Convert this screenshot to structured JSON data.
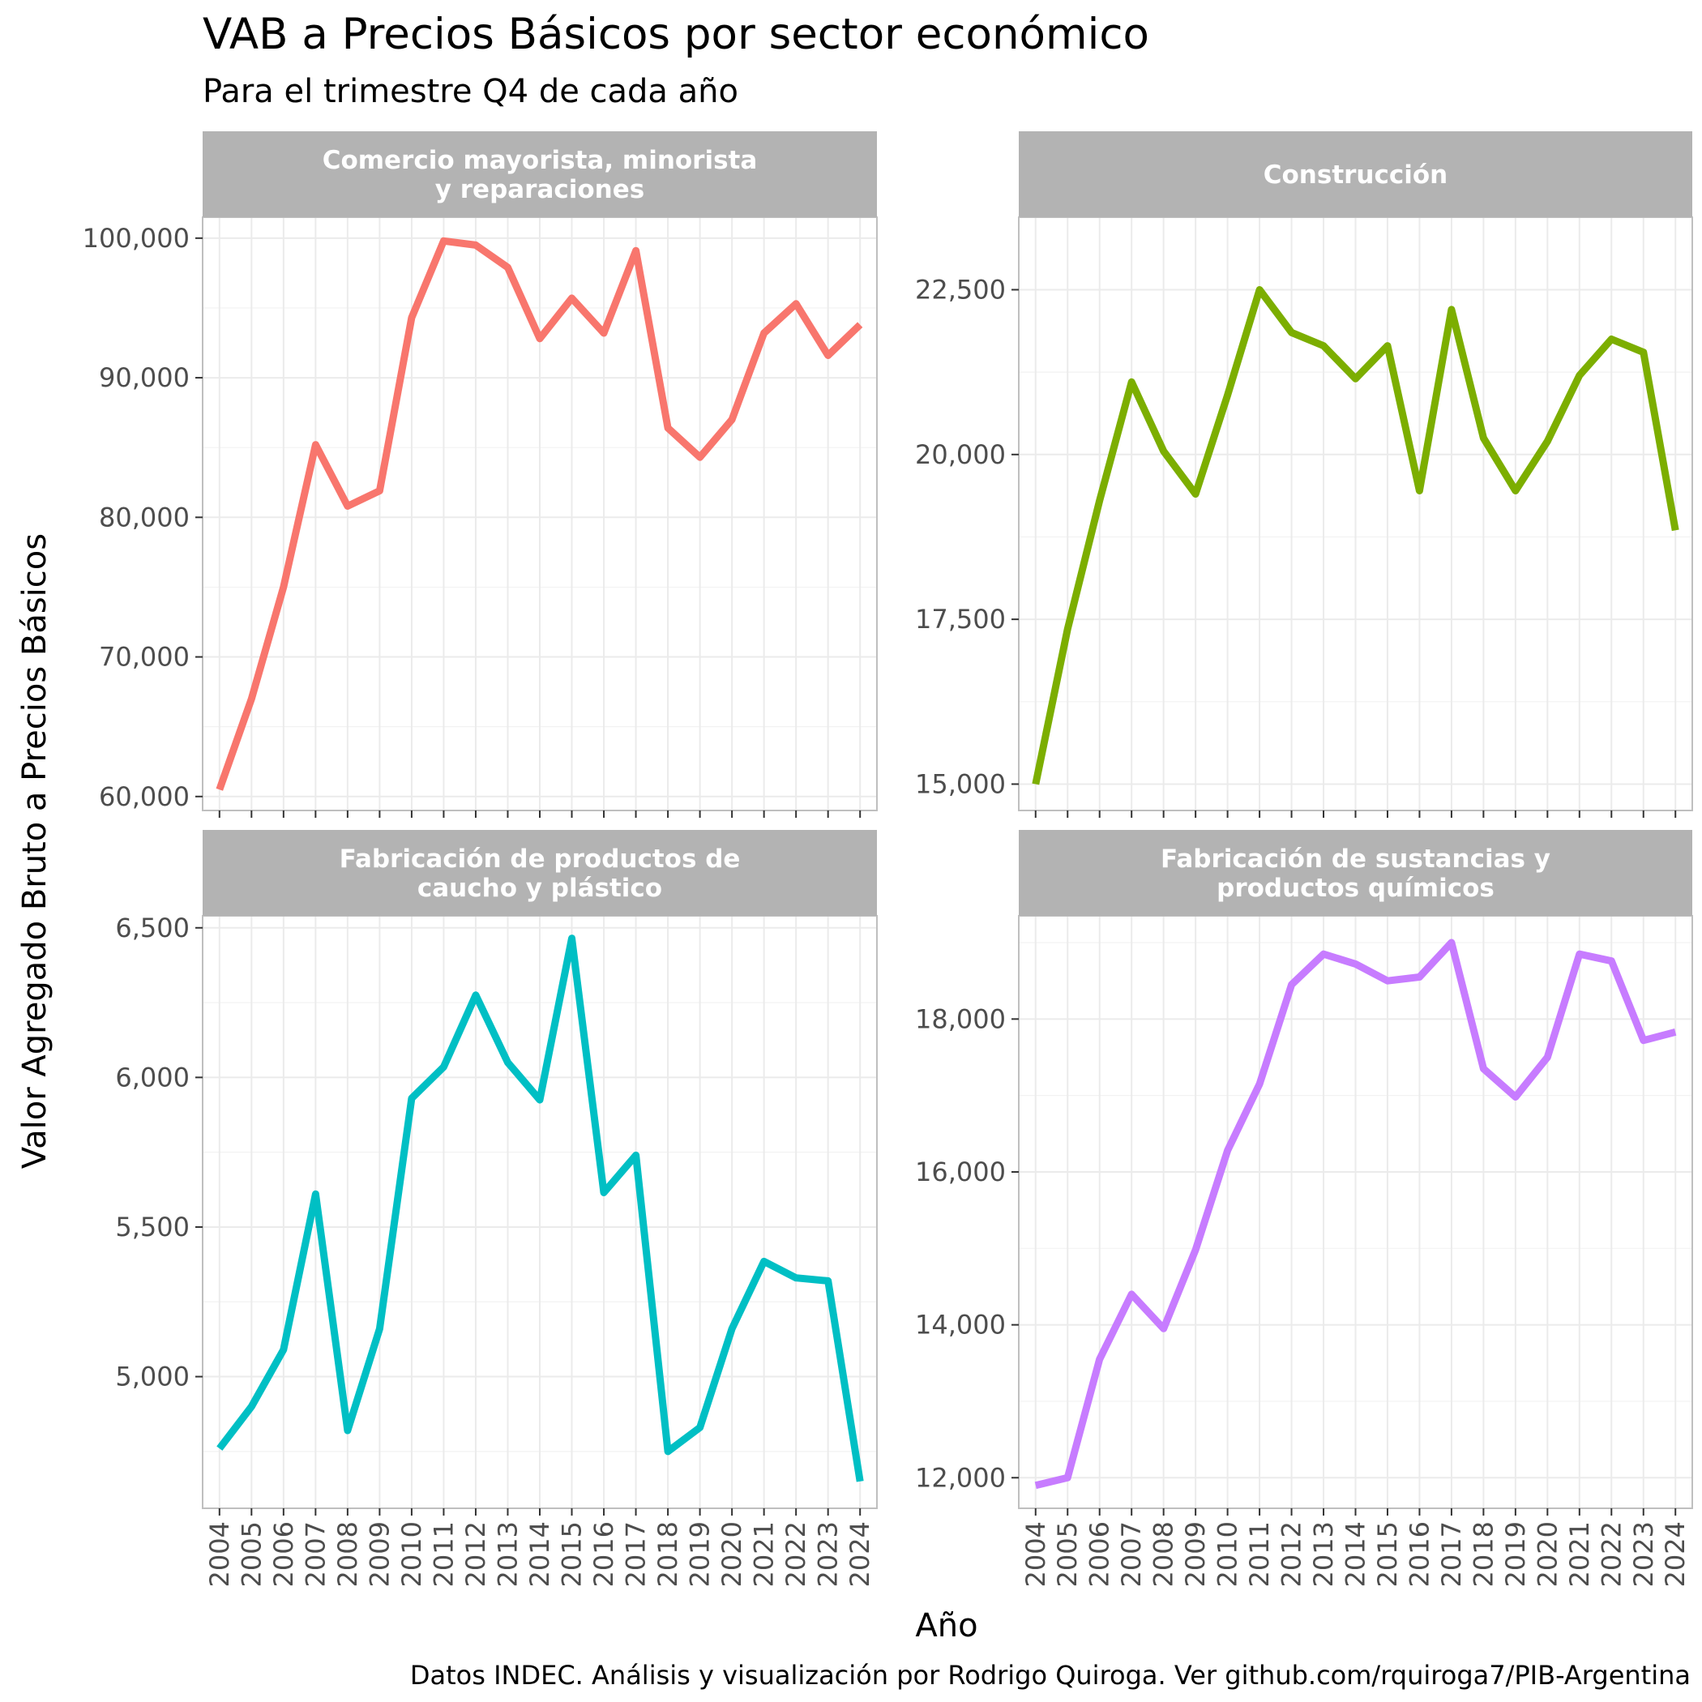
{
  "title": "VAB a Precios Básicos por sector económico",
  "subtitle": "Para el trimestre Q4 de cada año",
  "ylabel": "Valor Agregado Bruto a Precios Básicos",
  "xlabel": "Año",
  "caption": "Datos INDEC. Análisis y visualización por Rodrigo Quiroga. Ver github.com/rquiroga7/PIB-Argentina",
  "colors": {
    "strip_bg": "#b3b3b3",
    "grid": "#ebebeb",
    "panel_border": "#bfbfbf",
    "tick_text": "#4d4d4d"
  },
  "chart_data": [
    {
      "type": "line",
      "title_lines": [
        "Comercio mayorista, minorista",
        "y reparaciones"
      ],
      "color": "#F8766D",
      "ylim": [
        59000,
        101500
      ],
      "yticks": [
        60000,
        70000,
        80000,
        90000,
        100000
      ],
      "ytick_labels": [
        "60,000",
        "70,000",
        "80,000",
        "90,000",
        "100,000"
      ],
      "x": [
        2004,
        2005,
        2006,
        2007,
        2008,
        2009,
        2010,
        2011,
        2012,
        2013,
        2014,
        2015,
        2016,
        2017,
        2018,
        2019,
        2020,
        2021,
        2022,
        2023,
        2024
      ],
      "values": [
        60500,
        67000,
        75000,
        85200,
        80800,
        81900,
        94300,
        99800,
        99500,
        97900,
        92800,
        95700,
        93200,
        99100,
        86400,
        84300,
        87000,
        93200,
        95300,
        91600,
        93800
      ]
    },
    {
      "type": "line",
      "title_lines": [
        "Construcción"
      ],
      "color": "#7CAE00",
      "ylim": [
        14600,
        23600
      ],
      "yticks": [
        15000,
        17500,
        20000,
        22500
      ],
      "ytick_labels": [
        "15,000",
        "17,500",
        "20,000",
        "22,500"
      ],
      "x": [
        2004,
        2005,
        2006,
        2007,
        2008,
        2009,
        2010,
        2011,
        2012,
        2013,
        2014,
        2015,
        2016,
        2017,
        2018,
        2019,
        2020,
        2021,
        2022,
        2023,
        2024
      ],
      "values": [
        15000,
        17350,
        19300,
        21100,
        20050,
        19400,
        20900,
        22500,
        21850,
        21650,
        21150,
        21650,
        19450,
        22200,
        20250,
        19450,
        20200,
        21200,
        21750,
        21550,
        18850
      ]
    },
    {
      "type": "line",
      "title_lines": [
        "Fabricación de productos de",
        "caucho y plástico"
      ],
      "color": "#00BFC4",
      "ylim": [
        4560,
        6540
      ],
      "yticks": [
        5000,
        5500,
        6000,
        6500
      ],
      "ytick_labels": [
        "5,000",
        "5,500",
        "6,000",
        "6,500"
      ],
      "x": [
        2004,
        2005,
        2006,
        2007,
        2008,
        2009,
        2010,
        2011,
        2012,
        2013,
        2014,
        2015,
        2016,
        2017,
        2018,
        2019,
        2020,
        2021,
        2022,
        2023,
        2024
      ],
      "values": [
        4760,
        4900,
        5090,
        5610,
        4820,
        5160,
        5930,
        6035,
        6275,
        6050,
        5925,
        6465,
        5615,
        5740,
        4750,
        4830,
        5160,
        5385,
        5330,
        5320,
        4650
      ]
    },
    {
      "type": "line",
      "title_lines": [
        "Fabricación de sustancias y",
        "productos químicos"
      ],
      "color": "#C77CFF",
      "ylim": [
        11600,
        19350
      ],
      "yticks": [
        12000,
        14000,
        16000,
        18000
      ],
      "ytick_labels": [
        "12,000",
        "14,000",
        "16,000",
        "18,000"
      ],
      "x": [
        2004,
        2005,
        2006,
        2007,
        2008,
        2009,
        2010,
        2011,
        2012,
        2013,
        2014,
        2015,
        2016,
        2017,
        2018,
        2019,
        2020,
        2021,
        2022,
        2023,
        2024
      ],
      "values": [
        11900,
        12000,
        13550,
        14400,
        13950,
        14980,
        16280,
        17150,
        18450,
        18850,
        18720,
        18500,
        18550,
        19000,
        17350,
        16980,
        17500,
        18850,
        18760,
        17720,
        17830
      ]
    }
  ]
}
